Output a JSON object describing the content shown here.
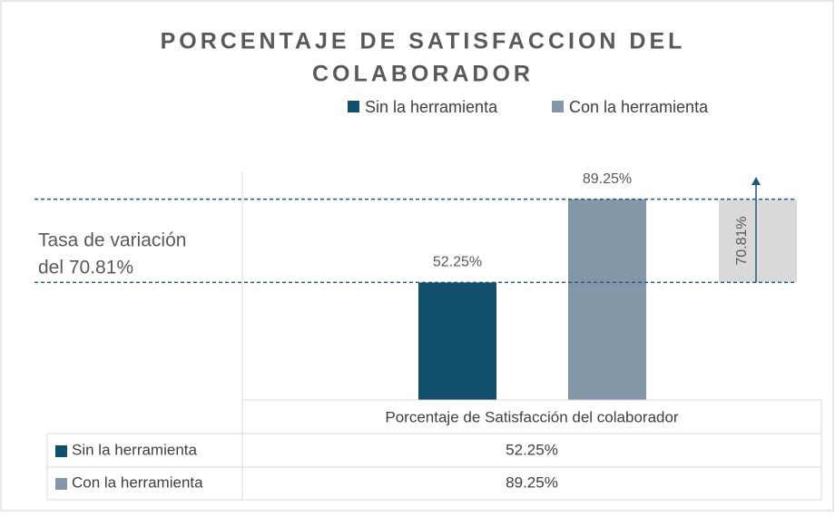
{
  "chart_data": {
    "type": "bar",
    "title": [
      "PORCENTAJE DE SATISFACCION DEL",
      "COLABORADOR"
    ],
    "categories": [
      "Porcentaje de Satisfacción del colaborador"
    ],
    "series": [
      {
        "name": "Sin la herramienta",
        "color": "#12506b",
        "values": [
          52.25
        ],
        "value_labels": [
          "52.25%"
        ]
      },
      {
        "name": "Con la herramienta",
        "color": "#8497a9",
        "values": [
          89.25
        ],
        "value_labels": [
          "89.25%"
        ]
      }
    ],
    "ylim": [
      0,
      100
    ],
    "annotations": {
      "variation_text": [
        "Tasa de variación",
        "del 70.81%"
      ],
      "variation_label": "70.81%",
      "box_color": "#d9d9d9",
      "line_color": "#1f5a7a"
    },
    "legend": "top",
    "data_table": true
  }
}
